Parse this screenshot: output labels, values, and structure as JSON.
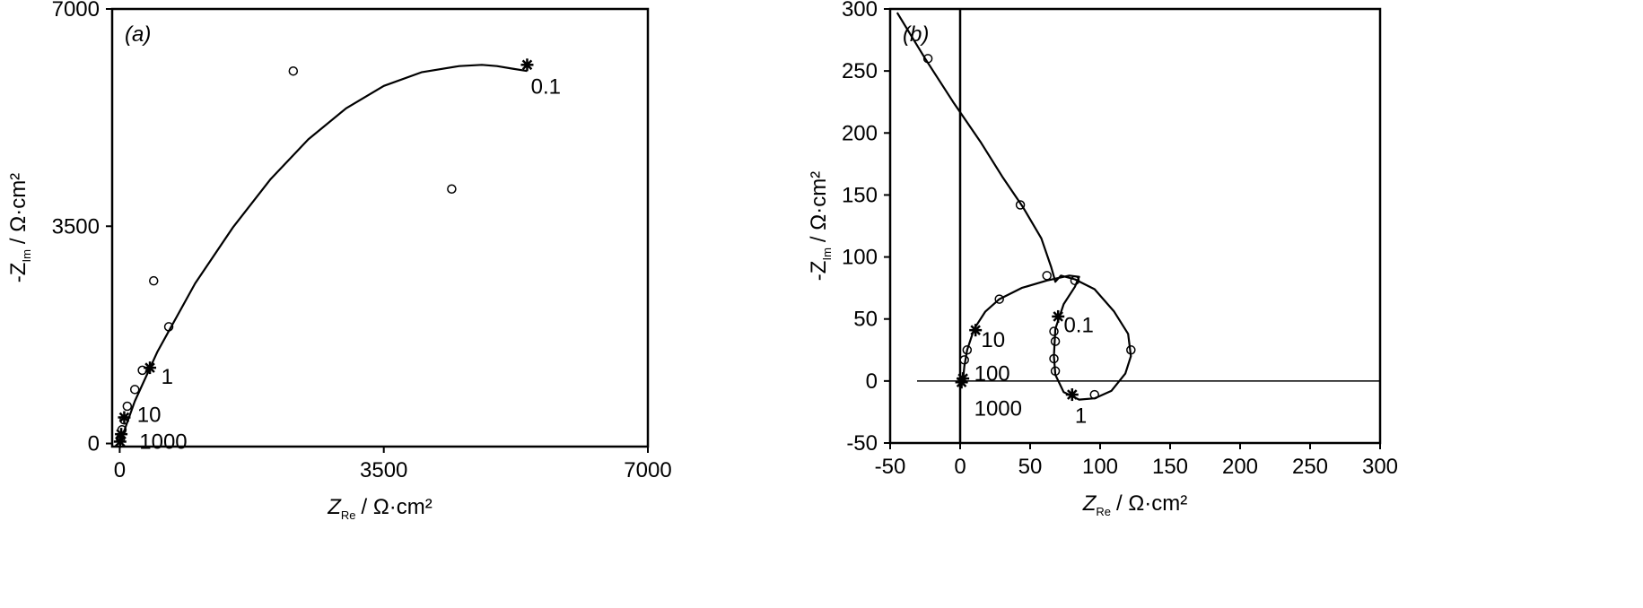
{
  "chart_data": [
    {
      "panel_label": "(a)",
      "type": "scatter",
      "xlabel": "Z",
      "xlabel_sub": "Re",
      "xlabel_unit": "/ Ω·cm²",
      "ylabel": "-Z",
      "ylabel_sub": "Im",
      "ylabel_unit": "/ Ω·cm²",
      "xlim": [
        -100,
        7000
      ],
      "ylim": [
        -50,
        7000
      ],
      "xticks": [
        "0",
        "3500",
        "7000"
      ],
      "yticks": [
        "0",
        "3500",
        "7000"
      ],
      "xtick_values": [
        0,
        3500,
        7000
      ],
      "ytick_values": [
        0,
        3500,
        7000
      ],
      "grid": false,
      "series": [
        {
          "marker": "circle",
          "x": [
            2300,
            4400,
            450,
            650,
            300,
            200,
            100,
            60,
            30,
            10
          ],
          "y": [
            6000,
            4100,
            2620,
            1880,
            1180,
            870,
            600,
            380,
            220,
            80
          ]
        },
        {
          "marker": "star",
          "x": [
            5400,
            400,
            60,
            20,
            5
          ],
          "y": [
            6100,
            1220,
            420,
            150,
            30
          ]
        },
        {
          "marker": "line",
          "x": [
            0,
            200,
            500,
            1000,
            1500,
            2000,
            2500,
            3000,
            3500,
            4000,
            4500,
            4800,
            5000,
            5200,
            5400
          ],
          "y": [
            0,
            680,
            1480,
            2580,
            3480,
            4260,
            4900,
            5400,
            5760,
            5980,
            6080,
            6100,
            6080,
            6040,
            6000
          ]
        }
      ],
      "annotations": [
        {
          "text": "0.1",
          "x": 5450,
          "y": 5750
        },
        {
          "text": "1",
          "x": 550,
          "y": 1080
        },
        {
          "text": "10",
          "x": 230,
          "y": 460
        },
        {
          "text": "1000",
          "x": 260,
          "y": 30
        }
      ]
    },
    {
      "panel_label": "(b)",
      "type": "scatter",
      "xlabel": "Z",
      "xlabel_sub": "Re",
      "xlabel_unit": "/ Ω·cm²",
      "ylabel": "-Z",
      "ylabel_sub": "Im",
      "ylabel_unit": "/ Ω·cm²",
      "xlim": [
        -50,
        300
      ],
      "ylim": [
        -50,
        300
      ],
      "xticks": [
        "-50",
        "0",
        "50",
        "100",
        "150",
        "200",
        "250",
        "300"
      ],
      "yticks": [
        "-50",
        "0",
        "50",
        "100",
        "150",
        "200",
        "250",
        "300"
      ],
      "xtick_values": [
        -50,
        0,
        50,
        100,
        150,
        200,
        250,
        300
      ],
      "ytick_values": [
        -50,
        0,
        50,
        100,
        150,
        200,
        250,
        300
      ],
      "grid": false,
      "series": [
        {
          "marker": "circle",
          "x": [
            -23,
            43,
            62,
            82,
            28,
            122,
            96,
            68,
            67,
            68,
            67,
            5,
            3
          ],
          "y": [
            260,
            142,
            85,
            81,
            66,
            25,
            -11,
            32,
            18,
            8,
            40,
            25,
            17
          ]
        },
        {
          "marker": "star",
          "x": [
            70,
            11,
            80,
            2,
            1
          ],
          "y": [
            52,
            41,
            -11,
            2,
            -1
          ]
        },
        {
          "marker": "line",
          "x": [
            -45,
            -25,
            -5,
            15,
            30,
            45,
            58,
            65,
            68,
            72,
            82,
            96,
            110,
            120,
            122,
            118,
            108,
            96,
            85,
            74,
            68,
            67,
            68,
            74,
            82,
            85,
            78,
            62,
            44,
            28,
            18,
            10,
            5,
            3,
            2
          ],
          "y": [
            297,
            260,
            225,
            192,
            165,
            140,
            115,
            92,
            80,
            85,
            82,
            74,
            56,
            38,
            20,
            6,
            -8,
            -14,
            -15,
            -9,
            5,
            20,
            42,
            62,
            76,
            84,
            85,
            81,
            75,
            66,
            56,
            42,
            25,
            12,
            0
          ]
        }
      ],
      "reference_lines": {
        "vertical_at_x": 0,
        "horizontal_at_y": 0
      },
      "annotations": [
        {
          "text": "0.1",
          "x": 74,
          "y": 45
        },
        {
          "text": "10",
          "x": 15,
          "y": 33
        },
        {
          "text": "100",
          "x": 10,
          "y": 6
        },
        {
          "text": "1000",
          "x": 10,
          "y": -22
        },
        {
          "text": "1",
          "x": 82,
          "y": -28
        }
      ]
    }
  ]
}
